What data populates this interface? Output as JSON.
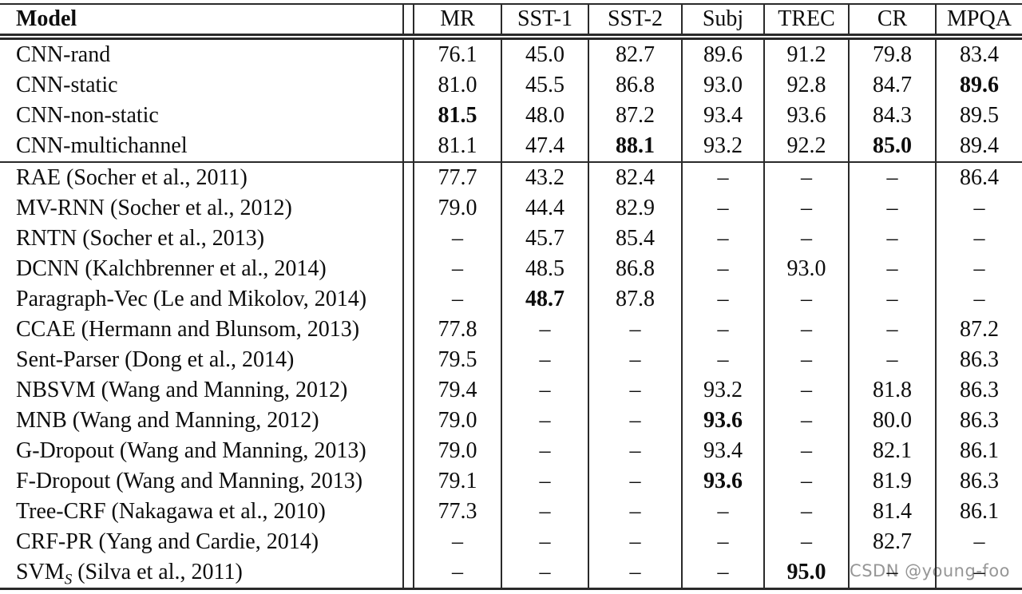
{
  "colors": {
    "rule_line": "#2a2a2a",
    "text": "#0d0d0d",
    "watermark_gray": "#848484",
    "background": "#ffffff"
  },
  "watermark": {
    "text": "CSDN @young-foo"
  },
  "table": {
    "columns": [
      "Model",
      "MR",
      "SST-1",
      "SST-2",
      "Subj",
      "TREC",
      "CR",
      "MPQA"
    ],
    "rows": [
      {
        "label": "CNN-rand",
        "cells": [
          "76.1",
          "45.0",
          "82.7",
          "89.6",
          "91.2",
          "79.8",
          "83.4"
        ],
        "bold": []
      },
      {
        "label": "CNN-static",
        "cells": [
          "81.0",
          "45.5",
          "86.8",
          "93.0",
          "92.8",
          "84.7",
          "89.6"
        ],
        "bold": [
          6
        ]
      },
      {
        "label": "CNN-non-static",
        "cells": [
          "81.5",
          "48.0",
          "87.2",
          "93.4",
          "93.6",
          "84.3",
          "89.5"
        ],
        "bold": [
          0
        ]
      },
      {
        "label": "CNN-multichannel",
        "cells": [
          "81.1",
          "47.4",
          "88.1",
          "93.2",
          "92.2",
          "85.0",
          "89.4"
        ],
        "bold": [
          2,
          5
        ]
      },
      {
        "label": "RAE (Socher et al., 2011)",
        "rule_above": true,
        "cells": [
          "77.7",
          "43.2",
          "82.4",
          "–",
          "–",
          "–",
          "86.4"
        ],
        "bold": []
      },
      {
        "label": "MV-RNN (Socher et al., 2012)",
        "cells": [
          "79.0",
          "44.4",
          "82.9",
          "–",
          "–",
          "–",
          "–"
        ],
        "bold": []
      },
      {
        "label": "RNTN (Socher et al., 2013)",
        "cells": [
          "–",
          "45.7",
          "85.4",
          "–",
          "–",
          "–",
          "–"
        ],
        "bold": []
      },
      {
        "label": "DCNN (Kalchbrenner et al., 2014)",
        "cells": [
          "–",
          "48.5",
          "86.8",
          "–",
          "93.0",
          "–",
          "–"
        ],
        "bold": []
      },
      {
        "label": "Paragraph-Vec (Le and Mikolov, 2014)",
        "cells": [
          "–",
          "48.7",
          "87.8",
          "–",
          "–",
          "–",
          "–"
        ],
        "bold": [
          1
        ]
      },
      {
        "label": "CCAE (Hermann and Blunsom, 2013)",
        "cells": [
          "77.8",
          "–",
          "–",
          "–",
          "–",
          "–",
          "87.2"
        ],
        "bold": []
      },
      {
        "label": "Sent-Parser (Dong et al., 2014)",
        "cells": [
          "79.5",
          "–",
          "–",
          "–",
          "–",
          "–",
          "86.3"
        ],
        "bold": []
      },
      {
        "label": "NBSVM (Wang and Manning, 2012)",
        "cells": [
          "79.4",
          "–",
          "–",
          "93.2",
          "–",
          "81.8",
          "86.3"
        ],
        "bold": []
      },
      {
        "label": "MNB (Wang and Manning, 2012)",
        "cells": [
          "79.0",
          "–",
          "–",
          "93.6",
          "–",
          "80.0",
          "86.3"
        ],
        "bold": [
          3
        ]
      },
      {
        "label": "G-Dropout (Wang and Manning, 2013)",
        "cells": [
          "79.0",
          "–",
          "–",
          "93.4",
          "–",
          "82.1",
          "86.1"
        ],
        "bold": []
      },
      {
        "label": "F-Dropout (Wang and Manning, 2013)",
        "cells": [
          "79.1",
          "–",
          "–",
          "93.6",
          "–",
          "81.9",
          "86.3"
        ],
        "bold": [
          3
        ]
      },
      {
        "label": "Tree-CRF (Nakagawa et al., 2010)",
        "cells": [
          "77.3",
          "–",
          "–",
          "–",
          "–",
          "81.4",
          "86.1"
        ],
        "bold": []
      },
      {
        "label": "CRF-PR (Yang and Cardie, 2014)",
        "cells": [
          "–",
          "–",
          "–",
          "–",
          "–",
          "82.7",
          "–"
        ],
        "bold": []
      },
      {
        "label": "SVM",
        "label_sub": "S",
        "label_rest": " (Silva et al., 2011)",
        "cells": [
          "–",
          "–",
          "–",
          "–",
          "95.0",
          "–",
          "–"
        ],
        "bold": [
          4
        ]
      }
    ]
  }
}
